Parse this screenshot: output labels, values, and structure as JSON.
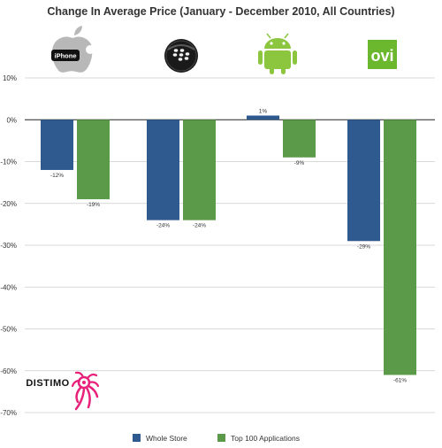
{
  "chart_data": {
    "type": "bar",
    "title": "Change In Average Price (January - December 2010, All Countries)",
    "categories": [
      "iPhone",
      "BlackBerry",
      "Android",
      "Ovi"
    ],
    "series": [
      {
        "name": "Whole Store",
        "values": [
          -12,
          -24,
          1,
          -29
        ],
        "labels": [
          "-12%",
          "-24%",
          "1%",
          "-29%"
        ],
        "color": "#2e5a8f"
      },
      {
        "name": "Top 100 Applications",
        "values": [
          -19,
          -24,
          -9,
          -61
        ],
        "labels": [
          "-19%",
          "-24%",
          "-9%",
          "-61%"
        ],
        "color": "#5b9a48"
      }
    ],
    "ylim": [
      -70,
      10
    ],
    "yticks": [
      10,
      0,
      -10,
      -20,
      -30,
      -40,
      -50,
      -60,
      -70
    ],
    "ytick_labels": [
      "10%",
      "0%",
      "-10%",
      "-20%",
      "-30%",
      "-40%",
      "-50%",
      "-60%",
      "-70%"
    ],
    "grid": true,
    "legend": "bottom",
    "xlabel": "",
    "ylabel": ""
  },
  "logos": {
    "iphone": {
      "text": "iPhone",
      "icon": "apple-icon"
    },
    "blackberry": {
      "icon": "blackberry-icon"
    },
    "android": {
      "icon": "android-robot-icon"
    },
    "ovi": {
      "text": "ovi",
      "icon": "ovi-icon",
      "color": "#6bb82f"
    }
  },
  "watermark": {
    "text": "DISTIMO",
    "icon": "distimo-octopus-icon",
    "color": "#e8217a"
  }
}
